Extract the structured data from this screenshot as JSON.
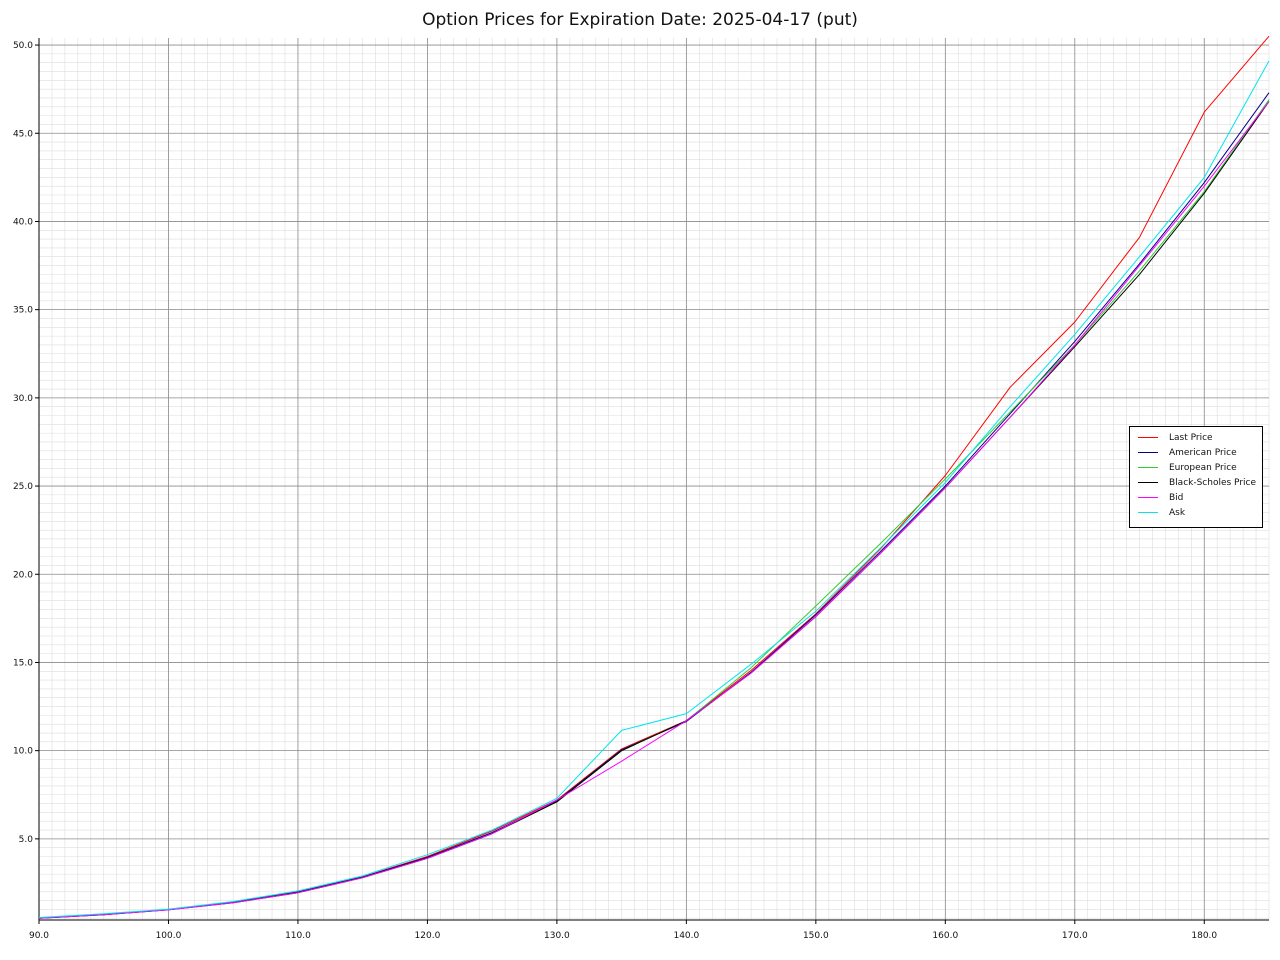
{
  "chart_data": {
    "type": "line",
    "title": "Option Prices for Expiration Date: 2025-04-17 (put)",
    "xlabel": "",
    "ylabel": "",
    "xlim": [
      90,
      185
    ],
    "ylim": [
      0.4,
      50.4
    ],
    "x_ticks": [
      "90.0",
      "100.0",
      "110.0",
      "120.0",
      "130.0",
      "140.0",
      "150.0",
      "160.0",
      "170.0",
      "180.0"
    ],
    "y_ticks": [
      "5.0",
      "10.0",
      "15.0",
      "20.0",
      "25.0",
      "30.0",
      "35.0",
      "40.0",
      "45.0",
      "50.0"
    ],
    "grid": true,
    "legend_position": "right",
    "x": [
      90,
      95,
      100,
      105,
      110,
      115,
      120,
      125,
      130,
      135,
      140,
      145,
      150,
      155,
      160,
      165,
      170,
      175,
      180,
      185
    ],
    "series": [
      {
        "name": "Last Price",
        "color": "#ff0000",
        "values": [
          0.52,
          0.72,
          1.0,
          1.42,
          2.0,
          2.85,
          4.0,
          5.45,
          7.2,
          10.1,
          11.7,
          14.55,
          17.75,
          21.45,
          25.6,
          30.6,
          34.3,
          39.1,
          46.2,
          50.5
        ]
      },
      {
        "name": "American Price",
        "color": "#00008b",
        "values": [
          0.51,
          0.72,
          1.0,
          1.4,
          1.98,
          2.83,
          3.95,
          5.36,
          7.15,
          10.05,
          11.65,
          14.45,
          17.7,
          21.3,
          25.0,
          29.1,
          33.2,
          37.6,
          42.2,
          47.3
        ]
      },
      {
        "name": "European Price",
        "color": "#32cd32",
        "values": [
          0.5,
          0.7,
          0.98,
          1.38,
          1.95,
          2.8,
          3.9,
          5.3,
          7.1,
          10.0,
          11.7,
          14.7,
          18.2,
          21.75,
          25.4,
          29.2,
          33.0,
          37.2,
          41.7,
          46.9
        ]
      },
      {
        "name": "Black-Scholes Price",
        "color": "#000000",
        "values": [
          0.5,
          0.7,
          0.98,
          1.38,
          1.95,
          2.8,
          3.9,
          5.3,
          7.1,
          10.0,
          11.7,
          14.4,
          17.6,
          21.2,
          24.9,
          28.9,
          32.9,
          37.0,
          41.6,
          46.8
        ]
      },
      {
        "name": "Bid",
        "color": "#ff00ff",
        "values": [
          0.5,
          0.7,
          0.97,
          1.38,
          1.95,
          2.8,
          3.9,
          5.3,
          7.2,
          9.4,
          11.7,
          14.4,
          17.6,
          21.2,
          24.9,
          28.9,
          33.0,
          37.5,
          42.0,
          46.8
        ]
      },
      {
        "name": "Ask",
        "color": "#00e5ee",
        "values": [
          0.54,
          0.75,
          1.02,
          1.45,
          2.05,
          2.9,
          4.1,
          5.5,
          7.3,
          11.15,
          12.1,
          14.9,
          17.9,
          21.5,
          25.2,
          29.5,
          33.6,
          38.0,
          42.5,
          49.1
        ]
      }
    ]
  }
}
